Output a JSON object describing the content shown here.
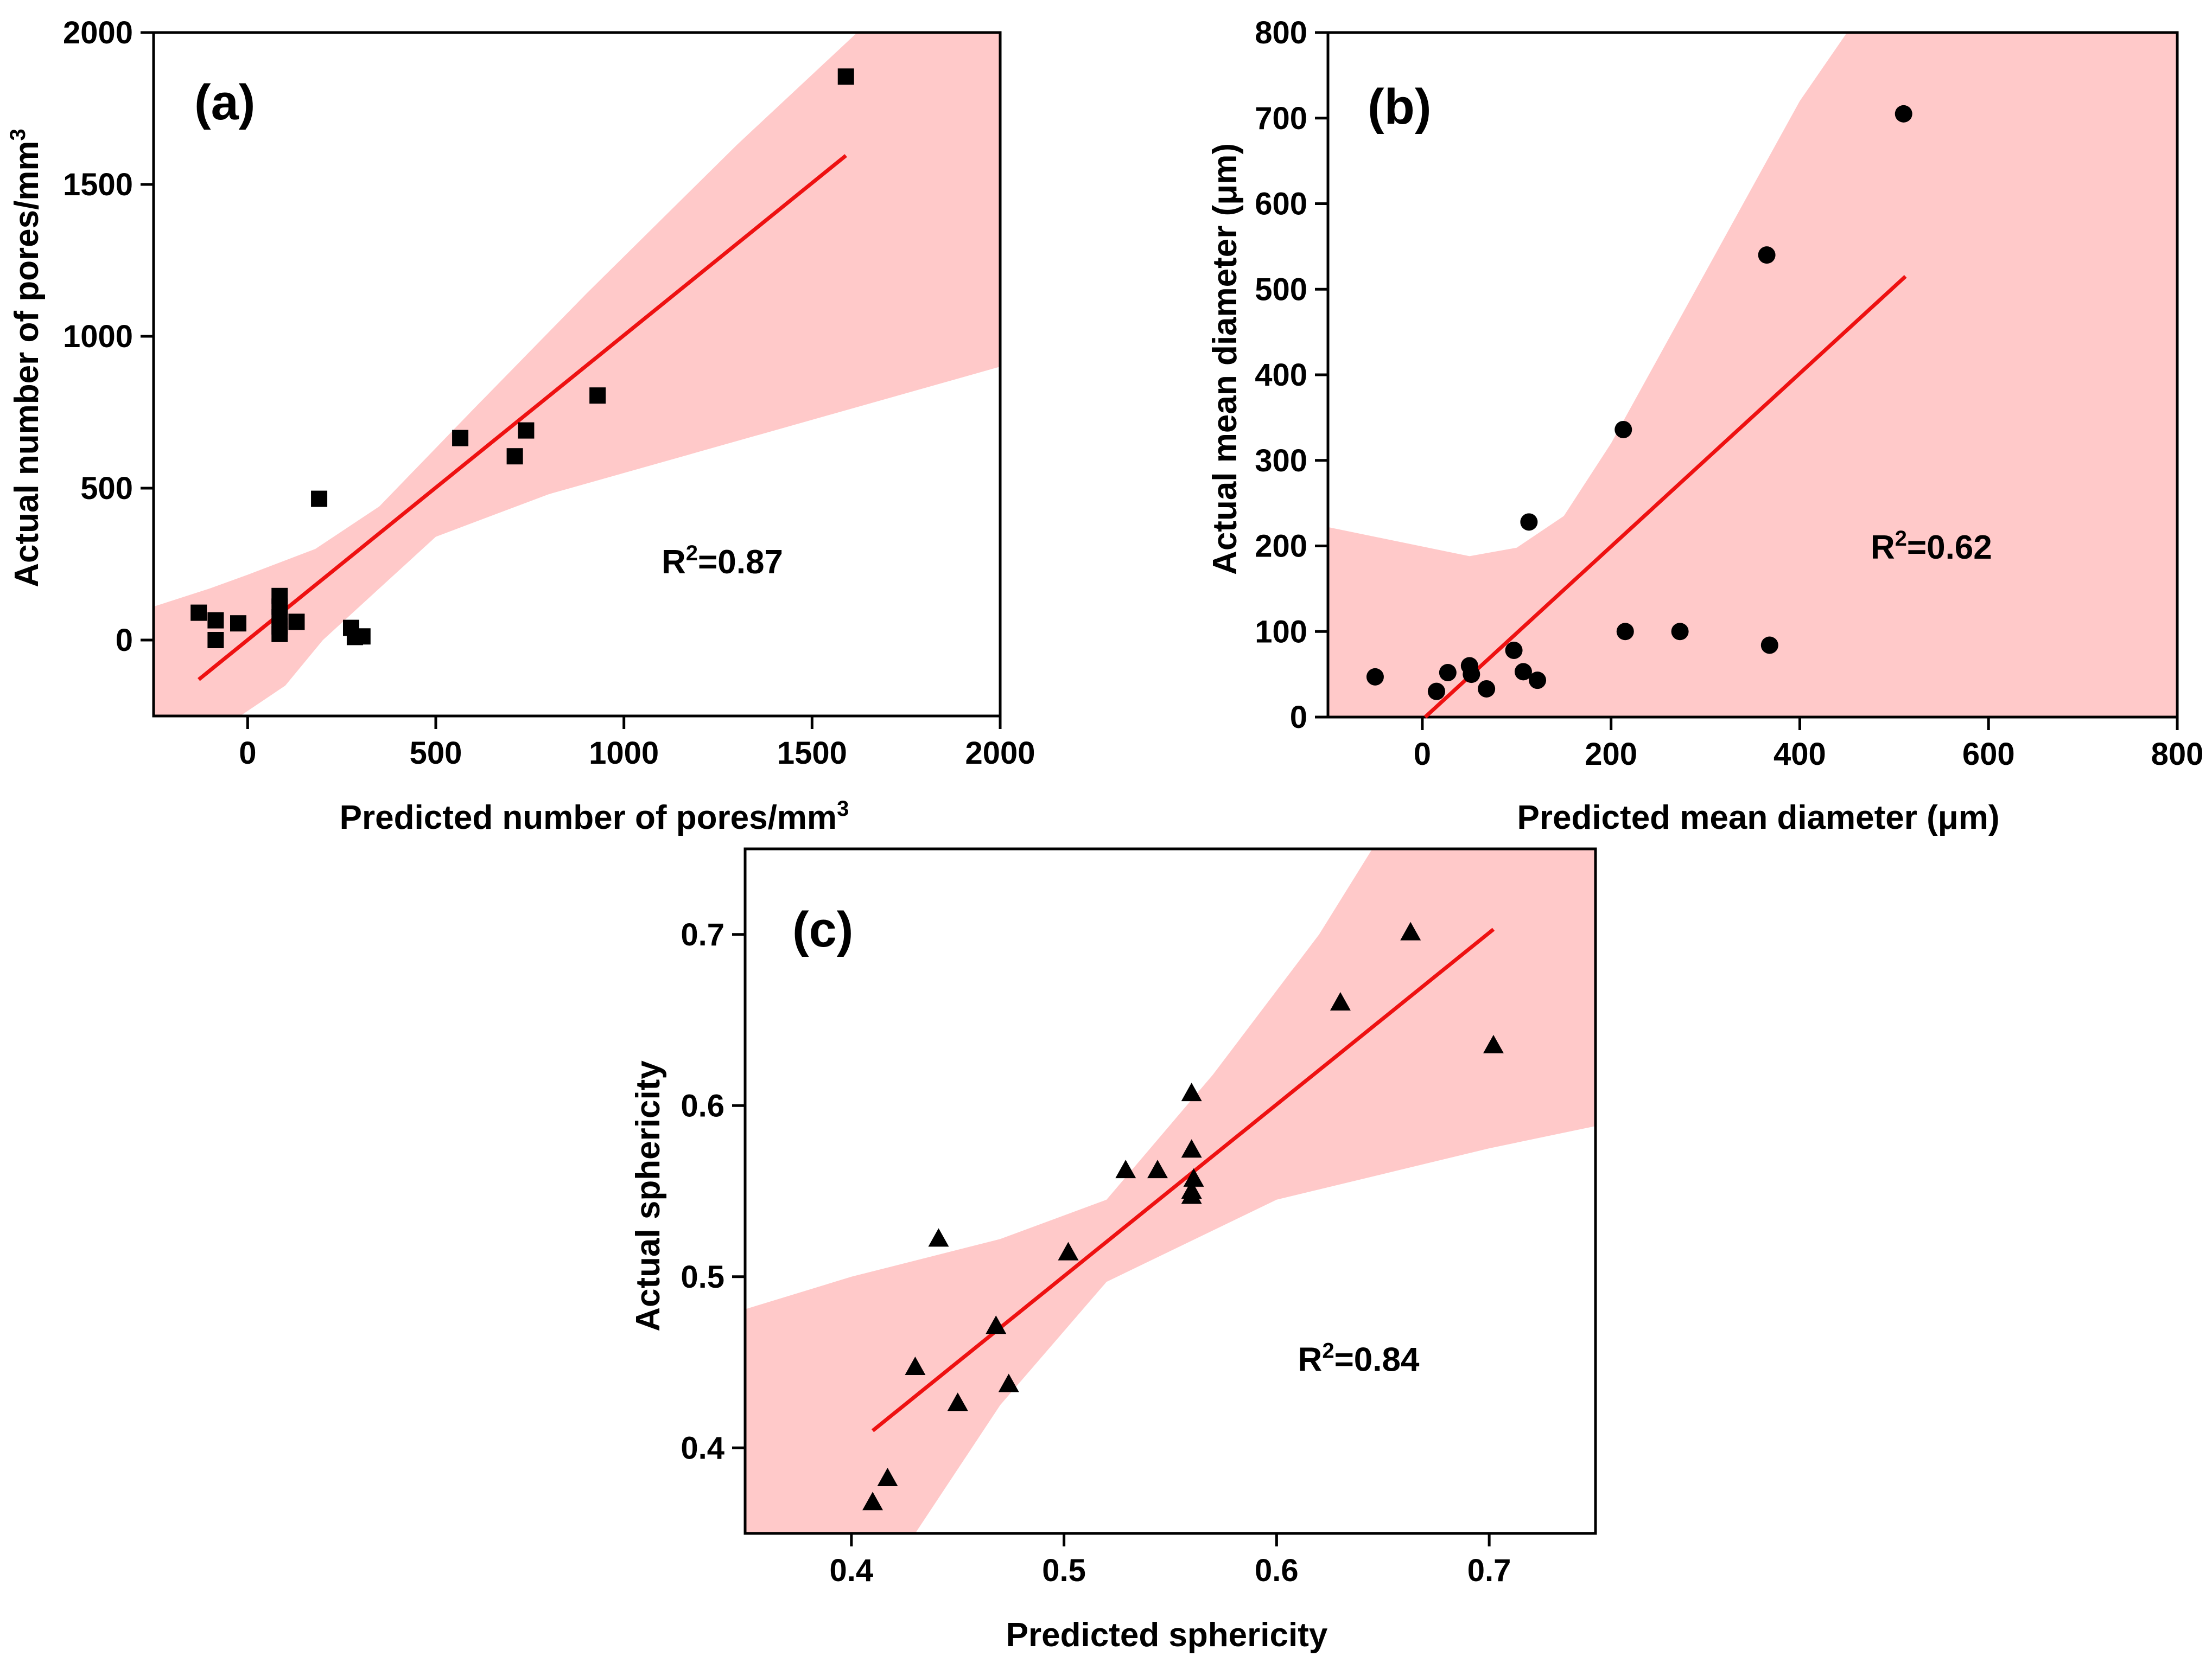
{
  "chart_data": [
    {
      "panel": "(a)",
      "type": "scatter",
      "marker": "square",
      "xlabel": "Predicted number of pores/mm",
      "xlabel_sup": "3",
      "ylabel": "Actual number of pores/mm",
      "ylabel_sup": "3",
      "xlim": [
        -250,
        2000
      ],
      "ylim": [
        -250,
        2000
      ],
      "xticks": [
        0,
        500,
        1000,
        1500,
        2000
      ],
      "yticks": [
        0,
        500,
        1000,
        1500,
        2000
      ],
      "xtick_labels": [
        "0",
        "500",
        "1000",
        "1500",
        "2000"
      ],
      "ytick_labels": [
        "0",
        "500",
        "1000",
        "1500",
        "2000"
      ],
      "annotation_base": "R",
      "annotation_sup": "2",
      "annotation_value": "=0.87",
      "annotation_at": [
        1100,
        220
      ],
      "points": [
        {
          "x": -130,
          "y": 90
        },
        {
          "x": -85,
          "y": 65
        },
        {
          "x": -85,
          "y": 0
        },
        {
          "x": -25,
          "y": 55
        },
        {
          "x": 85,
          "y": 145
        },
        {
          "x": 85,
          "y": 110
        },
        {
          "x": 85,
          "y": 75
        },
        {
          "x": 85,
          "y": 45
        },
        {
          "x": 85,
          "y": 20
        },
        {
          "x": 130,
          "y": 60
        },
        {
          "x": 190,
          "y": 465
        },
        {
          "x": 275,
          "y": 40
        },
        {
          "x": 285,
          "y": 10
        },
        {
          "x": 305,
          "y": 12
        },
        {
          "x": 565,
          "y": 665
        },
        {
          "x": 710,
          "y": 605
        },
        {
          "x": 740,
          "y": 690
        },
        {
          "x": 930,
          "y": 805
        },
        {
          "x": 1590,
          "y": 1855
        }
      ],
      "fit_line": [
        [
          -130,
          -130
        ],
        [
          1590,
          1595
        ]
      ],
      "confidence_band": {
        "upper": [
          [
            -250,
            110
          ],
          [
            -100,
            170
          ],
          [
            0,
            215
          ],
          [
            180,
            300
          ],
          [
            350,
            440
          ],
          [
            600,
            760
          ],
          [
            900,
            1140
          ],
          [
            1300,
            1630
          ],
          [
            1620,
            2000
          ],
          [
            2000,
            2000
          ]
        ],
        "lower": [
          [
            2000,
            900
          ],
          [
            1600,
            760
          ],
          [
            1200,
            620
          ],
          [
            800,
            480
          ],
          [
            500,
            340
          ],
          [
            350,
            170
          ],
          [
            200,
            0
          ],
          [
            100,
            -150
          ],
          [
            -20,
            -250
          ],
          [
            -250,
            -250
          ]
        ]
      },
      "line_color": "#ee1111",
      "band_color": "#ffc9c9"
    },
    {
      "panel": "(b)",
      "type": "scatter",
      "marker": "circle",
      "xlabel": "Predicted mean diameter (μm)",
      "ylabel": "Actual mean diameter (μm)",
      "xlim": [
        -100,
        800
      ],
      "ylim": [
        0,
        800
      ],
      "xticks": [
        0,
        200,
        400,
        600,
        800
      ],
      "yticks": [
        0,
        100,
        200,
        300,
        400,
        500,
        600,
        700,
        800
      ],
      "xtick_labels": [
        "0",
        "200",
        "400",
        "600",
        "800"
      ],
      "ytick_labels": [
        "0",
        "100",
        "200",
        "300",
        "400",
        "500",
        "600",
        "700",
        "800"
      ],
      "annotation_base": "R",
      "annotation_sup": "2",
      "annotation_value": "=0.62",
      "annotation_at": [
        475,
        185
      ],
      "points": [
        {
          "x": -50,
          "y": 47
        },
        {
          "x": 15,
          "y": 30
        },
        {
          "x": 27,
          "y": 52
        },
        {
          "x": 50,
          "y": 60
        },
        {
          "x": 52,
          "y": 50
        },
        {
          "x": 68,
          "y": 33
        },
        {
          "x": 97,
          "y": 78
        },
        {
          "x": 107,
          "y": 53
        },
        {
          "x": 113,
          "y": 228
        },
        {
          "x": 122,
          "y": 43
        },
        {
          "x": 213,
          "y": 336
        },
        {
          "x": 215,
          "y": 100
        },
        {
          "x": 273,
          "y": 100
        },
        {
          "x": 365,
          "y": 540
        },
        {
          "x": 368,
          "y": 84
        },
        {
          "x": 510,
          "y": 705
        }
      ],
      "fit_line": [
        [
          3,
          0
        ],
        [
          512,
          515
        ]
      ],
      "confidence_band": {
        "upper": [
          [
            -100,
            222
          ],
          [
            50,
            188
          ],
          [
            100,
            198
          ],
          [
            150,
            235
          ],
          [
            200,
            320
          ],
          [
            300,
            520
          ],
          [
            400,
            720
          ],
          [
            450,
            800
          ],
          [
            800,
            800
          ]
        ],
        "lower": [
          [
            800,
            0
          ],
          [
            200,
            0
          ],
          [
            100,
            0
          ],
          [
            150,
            80
          ],
          [
            200,
            90
          ],
          [
            300,
            80
          ],
          [
            400,
            60
          ],
          [
            500,
            30
          ],
          [
            570,
            0
          ],
          [
            -100,
            0
          ]
        ]
      },
      "line_color": "#ee1111",
      "band_color": "#ffc9c9"
    },
    {
      "panel": "(c)",
      "type": "scatter",
      "marker": "triangle",
      "xlabel": "Predicted sphericity",
      "ylabel": "Actual sphericity",
      "xlim": [
        0.35,
        0.75
      ],
      "ylim": [
        0.35,
        0.75
      ],
      "xticks": [
        0.4,
        0.5,
        0.6,
        0.7
      ],
      "yticks": [
        0.4,
        0.5,
        0.6,
        0.7
      ],
      "xtick_labels": [
        "0.4",
        "0.5",
        "0.6",
        "0.7"
      ],
      "ytick_labels": [
        "0.4",
        "0.5",
        "0.6",
        "0.7"
      ],
      "annotation_base": "R",
      "annotation_sup": "2",
      "annotation_value": "=0.84",
      "annotation_at": [
        0.61,
        0.445
      ],
      "points": [
        {
          "x": 0.41,
          "y": 0.368
        },
        {
          "x": 0.417,
          "y": 0.382
        },
        {
          "x": 0.43,
          "y": 0.447
        },
        {
          "x": 0.441,
          "y": 0.522
        },
        {
          "x": 0.45,
          "y": 0.426
        },
        {
          "x": 0.468,
          "y": 0.471
        },
        {
          "x": 0.474,
          "y": 0.437
        },
        {
          "x": 0.502,
          "y": 0.514
        },
        {
          "x": 0.529,
          "y": 0.562
        },
        {
          "x": 0.544,
          "y": 0.562
        },
        {
          "x": 0.56,
          "y": 0.607
        },
        {
          "x": 0.56,
          "y": 0.574
        },
        {
          "x": 0.561,
          "y": 0.557
        },
        {
          "x": 0.56,
          "y": 0.55
        },
        {
          "x": 0.56,
          "y": 0.547
        },
        {
          "x": 0.63,
          "y": 0.66
        },
        {
          "x": 0.663,
          "y": 0.701
        },
        {
          "x": 0.702,
          "y": 0.635
        }
      ],
      "fit_line": [
        [
          0.41,
          0.41
        ],
        [
          0.702,
          0.703
        ]
      ],
      "confidence_band": {
        "upper": [
          [
            0.35,
            0.481
          ],
          [
            0.4,
            0.5
          ],
          [
            0.47,
            0.522
          ],
          [
            0.52,
            0.545
          ],
          [
            0.57,
            0.618
          ],
          [
            0.62,
            0.7
          ],
          [
            0.645,
            0.75
          ],
          [
            0.75,
            0.75
          ],
          [
            0.75,
            0.588
          ]
        ],
        "lower": [
          [
            0.75,
            0.588
          ],
          [
            0.7,
            0.575
          ],
          [
            0.6,
            0.545
          ],
          [
            0.52,
            0.497
          ],
          [
            0.47,
            0.425
          ],
          [
            0.43,
            0.35
          ],
          [
            0.35,
            0.35
          ]
        ]
      },
      "line_color": "#ee1111",
      "band_color": "#ffc9c9"
    }
  ]
}
